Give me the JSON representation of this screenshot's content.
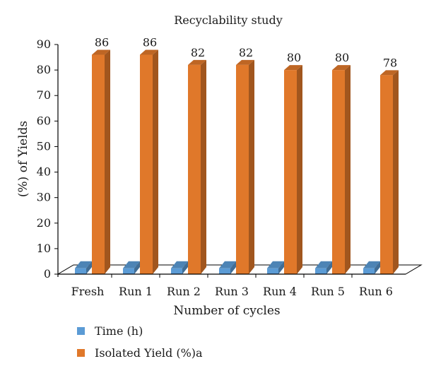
{
  "chart_data": {
    "type": "bar",
    "title": "Recyclability study",
    "xlabel": "Number of cycles",
    "ylabel": "(%) of Yields",
    "categories": [
      "Fresh",
      "Run 1",
      "Run 2",
      "Run 3",
      "Run 4",
      "Run 5",
      "Run 6"
    ],
    "series": [
      {
        "name": "Time (h)",
        "values": [
          2,
          2,
          2,
          2,
          2,
          2,
          2
        ],
        "color": "#5b9bd5"
      },
      {
        "name": "Isolated Yield (%)a",
        "values": [
          86,
          86,
          82,
          82,
          80,
          80,
          78
        ],
        "color": "#e0782a"
      }
    ],
    "data_labels": [
      "86",
      "86",
      "82",
      "82",
      "80",
      "80",
      "78"
    ],
    "ylim": [
      0,
      90
    ],
    "yticks": [
      0,
      10,
      20,
      30,
      40,
      50,
      60,
      70,
      80,
      90
    ],
    "grid": false,
    "legend_position": "bottom-left",
    "style": "3d"
  }
}
